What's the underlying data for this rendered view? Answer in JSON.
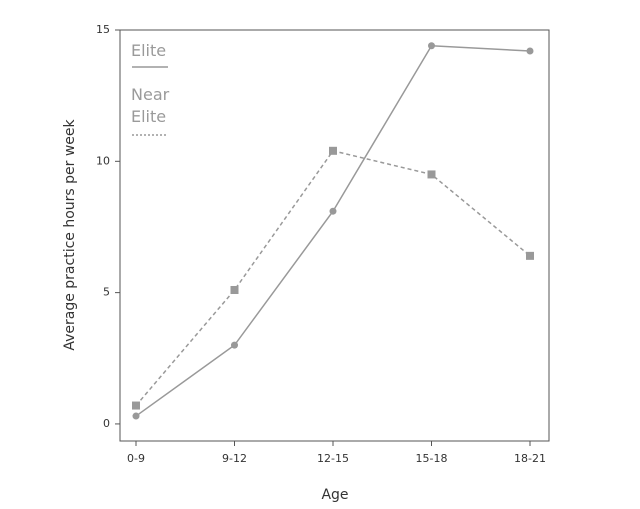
{
  "chart_data": {
    "type": "line",
    "x_label": "Age",
    "y_label": "Average practice hours per week",
    "categories": [
      "0-9",
      "9-12",
      "12-15",
      "15-18",
      "18-21"
    ],
    "series": [
      {
        "name": "Elite",
        "color": "#999999",
        "line_style": "solid",
        "marker": "circle",
        "values": [
          0.3,
          3.0,
          8.1,
          14.4,
          14.2
        ]
      },
      {
        "name": "Near Elite",
        "color": "#999999",
        "line_style": "dashed",
        "marker": "square",
        "values": [
          0.7,
          5.1,
          10.4,
          9.5,
          6.4
        ]
      }
    ],
    "ylim": [
      -0.65,
      15
    ],
    "yticks": [
      0,
      5,
      10,
      15
    ],
    "legend": "upper left"
  }
}
